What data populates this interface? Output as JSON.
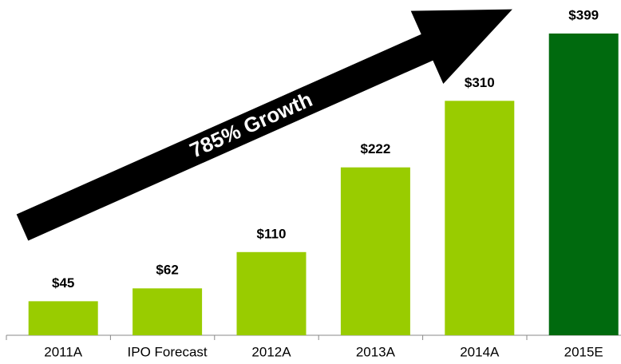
{
  "chart_data": {
    "type": "bar",
    "annotation": "785% Growth",
    "categories": [
      "2011A",
      "IPO Forecast",
      "2012A",
      "2013A",
      "2014A",
      "2015E"
    ],
    "values": [
      45,
      62,
      110,
      222,
      310,
      399
    ],
    "value_labels": [
      "$45",
      "$62",
      "$110",
      "$222",
      "$310",
      "$399"
    ],
    "colors": [
      "#99cc00",
      "#99cc00",
      "#99cc00",
      "#99cc00",
      "#99cc00",
      "#006a0e"
    ]
  }
}
